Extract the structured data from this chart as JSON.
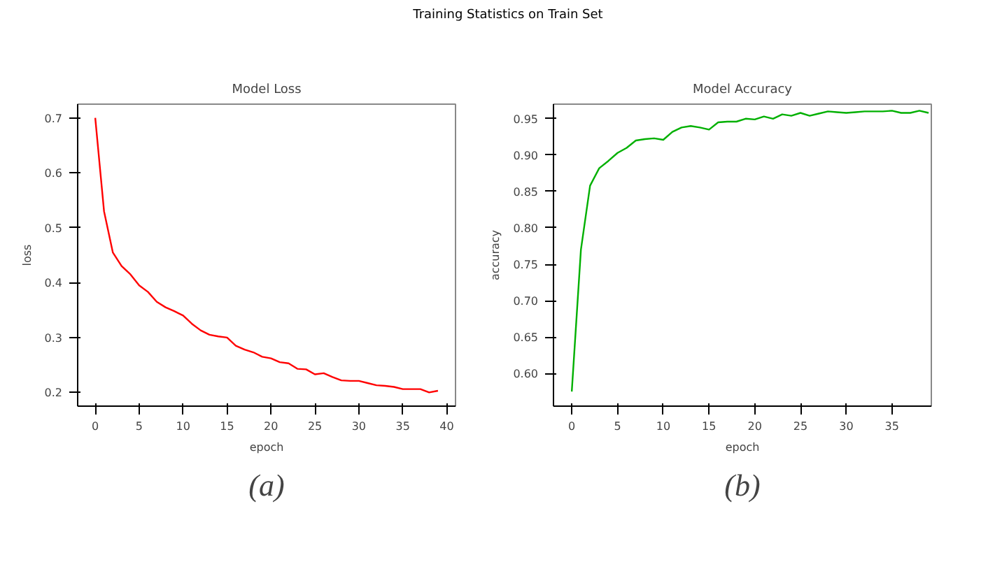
{
  "chart_data": [
    {
      "type": "line",
      "title": "Model Loss",
      "xlabel": "epoch",
      "ylabel": "loss",
      "grid": false,
      "annotations": [
        "Training Statistics on Train Set",
        "(a)"
      ],
      "x": [
        0,
        1,
        2,
        3,
        4,
        5,
        6,
        7,
        8,
        9,
        10,
        11,
        12,
        13,
        14,
        15,
        16,
        17,
        18,
        19,
        20,
        21,
        22,
        23,
        24,
        25,
        26,
        27,
        28,
        29,
        30,
        31,
        32,
        33,
        34,
        35,
        36,
        37,
        38,
        39
      ],
      "xlim": [
        -2,
        41
      ],
      "xticks": [
        0,
        5,
        10,
        15,
        20,
        25,
        30,
        35,
        40
      ],
      "ylim": [
        0.175,
        0.725
      ],
      "yticks": [
        0.2,
        0.3,
        0.4,
        0.5,
        0.6,
        0.7
      ],
      "series": [
        {
          "color": "#ff0000",
          "values": [
            0.7,
            0.53,
            0.455,
            0.43,
            0.415,
            0.395,
            0.383,
            0.365,
            0.355,
            0.348,
            0.34,
            0.325,
            0.313,
            0.305,
            0.302,
            0.3,
            0.285,
            0.278,
            0.273,
            0.265,
            0.262,
            0.255,
            0.253,
            0.243,
            0.242,
            0.233,
            0.235,
            0.228,
            0.222,
            0.221,
            0.221,
            0.217,
            0.213,
            0.212,
            0.21,
            0.206,
            0.206,
            0.206,
            0.2,
            0.203
          ]
        }
      ]
    },
    {
      "type": "line",
      "title": "Model Accuracy",
      "xlabel": "epoch",
      "ylabel": "accuracy",
      "grid": false,
      "annotations": [
        "(b)"
      ],
      "x": [
        0,
        1,
        2,
        3,
        4,
        5,
        6,
        7,
        8,
        9,
        10,
        11,
        12,
        13,
        14,
        15,
        16,
        17,
        18,
        19,
        20,
        21,
        22,
        23,
        24,
        25,
        26,
        27,
        28,
        29,
        30,
        31,
        32,
        33,
        34,
        35,
        36,
        37,
        38,
        39
      ],
      "xlim": [
        -2,
        39.3
      ],
      "xticks": [
        0,
        5,
        10,
        15,
        20,
        25,
        30,
        35
      ],
      "ylim": [
        0.555,
        0.97
      ],
      "yticks": [
        {
          "value": 0.6,
          "label": "0.60"
        },
        {
          "value": 0.65,
          "label": "0.65"
        },
        {
          "value": 0.7,
          "label": "0.70"
        },
        {
          "value": 0.75,
          "label": "0.75"
        },
        {
          "value": 0.8,
          "label": "0.80"
        },
        {
          "value": 0.85,
          "label": "0.85"
        },
        {
          "value": 0.9,
          "label": "0.90"
        },
        {
          "value": 0.95,
          "label": "0.95"
        }
      ],
      "series": [
        {
          "color": "#00b000",
          "values": [
            0.575,
            0.77,
            0.858,
            0.882,
            0.892,
            0.903,
            0.91,
            0.92,
            0.922,
            0.923,
            0.921,
            0.932,
            0.938,
            0.94,
            0.938,
            0.935,
            0.945,
            0.946,
            0.946,
            0.95,
            0.949,
            0.953,
            0.95,
            0.956,
            0.954,
            0.958,
            0.954,
            0.957,
            0.96,
            0.959,
            0.958,
            0.959,
            0.96,
            0.96,
            0.96,
            0.961,
            0.958,
            0.958,
            0.961,
            0.958
          ]
        }
      ]
    }
  ]
}
